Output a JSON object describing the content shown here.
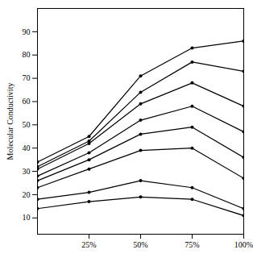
{
  "chart_data": {
    "type": "line",
    "y_label": "Molecular Conductivity",
    "x": [
      0,
      25,
      50,
      75,
      100
    ],
    "xlim": [
      0,
      100
    ],
    "xticks": [
      {
        "value": 25,
        "label": "25%"
      },
      {
        "value": 50,
        "label": "50%"
      },
      {
        "value": 75,
        "label": "75%"
      },
      {
        "value": 100,
        "label": "100%"
      }
    ],
    "ylim": [
      3,
      100
    ],
    "yticks": [
      10,
      20,
      30,
      40,
      50,
      60,
      70,
      80,
      90
    ],
    "grid": false,
    "color": "#000000",
    "marker": "dot",
    "series": [
      {
        "values": [
          34,
          45,
          71,
          83,
          86
        ]
      },
      {
        "values": [
          32,
          43,
          64,
          77,
          73
        ]
      },
      {
        "values": [
          31,
          42,
          59,
          68,
          58
        ]
      },
      {
        "values": [
          28,
          38,
          52,
          58,
          47
        ]
      },
      {
        "values": [
          26,
          35,
          46,
          49,
          36
        ]
      },
      {
        "values": [
          23,
          31,
          39,
          40,
          27
        ]
      },
      {
        "values": [
          18,
          21,
          26,
          23,
          14
        ]
      },
      {
        "values": [
          14,
          17,
          19,
          18,
          11
        ]
      }
    ]
  }
}
